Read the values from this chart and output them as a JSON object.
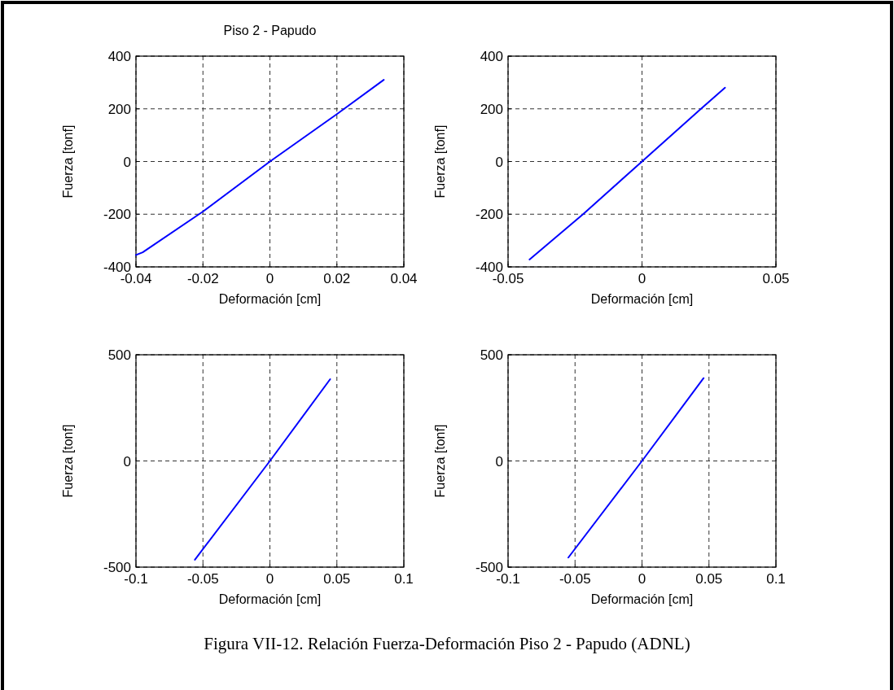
{
  "chart_data": [
    {
      "type": "line",
      "title": "Piso 2 - Papudo",
      "xlabel": "Deformación [cm]",
      "ylabel": "Fuerza [tonf]",
      "xlim": [
        -0.04,
        0.04
      ],
      "xticks": [
        -0.04,
        -0.02,
        0,
        0.02,
        0.04
      ],
      "ylim": [
        -400,
        400
      ],
      "yticks": [
        -400,
        -200,
        0,
        200,
        400
      ],
      "grid": true,
      "marker": "none",
      "line_style": "solid",
      "series": [
        {
          "color": "#0000ff",
          "x": [
            -0.04,
            -0.038,
            -0.02,
            0,
            0.02,
            0.034
          ],
          "values": [
            -355,
            -345,
            -190,
            0,
            180,
            310
          ]
        }
      ]
    },
    {
      "type": "line",
      "xlabel": "Deformación [cm]",
      "ylabel": "Fuerza [tonf]",
      "xlim": [
        -0.05,
        0.05
      ],
      "xticks": [
        -0.05,
        0,
        0.05
      ],
      "ylim": [
        -400,
        400
      ],
      "yticks": [
        -400,
        -200,
        0,
        200,
        400
      ],
      "grid": true,
      "marker": "none",
      "line_style": "solid",
      "series": [
        {
          "color": "#0000ff",
          "x": [
            -0.042,
            -0.022,
            0,
            0.022,
            0.031
          ],
          "values": [
            -372,
            -200,
            0,
            200,
            280
          ]
        }
      ]
    },
    {
      "type": "line",
      "xlabel": "Deformación [cm]",
      "ylabel": "Fuerza [tonf]",
      "xlim": [
        -0.1,
        0.1
      ],
      "xticks": [
        -0.1,
        -0.05,
        0,
        0.05,
        0.1
      ],
      "ylim": [
        -500,
        500
      ],
      "yticks": [
        -500,
        0,
        500
      ],
      "grid": true,
      "marker": "none",
      "line_style": "solid",
      "series": [
        {
          "color": "#0000ff",
          "x": [
            -0.056,
            0,
            0.045
          ],
          "values": [
            -465,
            0,
            385
          ]
        }
      ]
    },
    {
      "type": "line",
      "xlabel": "Deformación [cm]",
      "ylabel": "Fuerza [tonf]",
      "xlim": [
        -0.1,
        0.1
      ],
      "xticks": [
        -0.1,
        -0.05,
        0,
        0.05,
        0.1
      ],
      "ylim": [
        -500,
        500
      ],
      "yticks": [
        -500,
        0,
        500
      ],
      "grid": true,
      "marker": "none",
      "line_style": "solid",
      "annotations": [
        "Figura VII-12. Relación Fuerza-Deformación Piso 2 - Papudo (ADNL)"
      ],
      "series": [
        {
          "color": "#0000ff",
          "x": [
            -0.055,
            0,
            0.046
          ],
          "values": [
            -455,
            0,
            390
          ]
        }
      ]
    }
  ]
}
